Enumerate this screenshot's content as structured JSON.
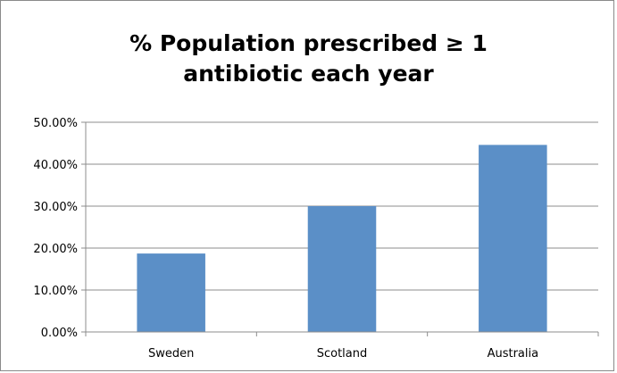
{
  "chart_data": {
    "type": "bar",
    "title": "% Population prescribed ≥ 1\nantibiotic each year",
    "xlabel": "",
    "ylabel": "",
    "categories": [
      "Sweden",
      "Scotland",
      "Australia"
    ],
    "values": [
      18.7,
      30.0,
      44.6
    ],
    "ylim": [
      0,
      50
    ],
    "yticks": [
      "0.00%",
      "10.00%",
      "20.00%",
      "30.00%",
      "40.00%",
      "50.00%"
    ],
    "grid": true,
    "legend": "none",
    "bar_color": "#5b8fc7"
  }
}
